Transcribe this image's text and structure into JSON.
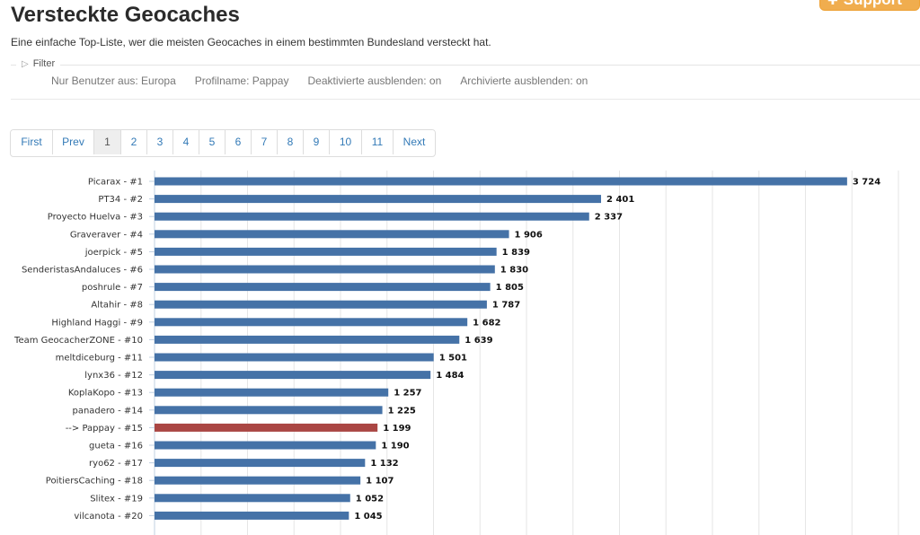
{
  "page": {
    "title": "Versteckte Geocaches",
    "subtitle": "Eine einfache Top-Liste, wer die meisten Geocaches in einem bestimmten Bundesland versteckt hat.",
    "support_label": "Support"
  },
  "filter": {
    "label": "Filter",
    "values": [
      "Nur Benutzer aus: Europa",
      "Profilname: Pappay",
      "Deaktivierte ausblenden: on",
      "Archivierte ausblenden: on"
    ]
  },
  "pagination": {
    "items": [
      "First",
      "Prev",
      "1",
      "2",
      "3",
      "4",
      "5",
      "6",
      "7",
      "8",
      "9",
      "10",
      "11",
      "Next"
    ],
    "active": "1"
  },
  "colors": {
    "bar": "#4572a7",
    "highlight": "#aa4643",
    "accent": "#f0ad4e",
    "link": "#337ab7"
  },
  "chart_data": {
    "type": "bar",
    "orientation": "horizontal",
    "categories": [
      "Picarax - #1",
      "PT34 - #2",
      "Proyecto Huelva - #3",
      "Graveraver - #4",
      "joerpick - #5",
      "SenderistasAndaluces - #6",
      "poshrule - #7",
      "Altahir - #8",
      "Highland Haggi - #9",
      "Team GeocacherZONE - #10",
      "meltdiceburg - #11",
      "lynx36 - #12",
      "KoplaKopo - #13",
      "panadero - #14",
      "--> Pappay - #15",
      "gueta - #16",
      "ryo62 - #17",
      "PoitiersCaching - #18",
      "Slitex - #19",
      "vilcanota - #20"
    ],
    "values": [
      3724,
      2401,
      2337,
      1906,
      1839,
      1830,
      1805,
      1787,
      1682,
      1639,
      1501,
      1484,
      1257,
      1225,
      1199,
      1190,
      1132,
      1107,
      1052,
      1045
    ],
    "value_labels": [
      "3 724",
      "2 401",
      "2 337",
      "1 906",
      "1 839",
      "1 830",
      "1 805",
      "1 787",
      "1 682",
      "1 639",
      "1 501",
      "1 484",
      "1 257",
      "1 225",
      "1 199",
      "1 190",
      "1 132",
      "1 107",
      "1 052",
      "1 045"
    ],
    "highlight_index": 14,
    "xlim": [
      0,
      4000
    ],
    "grid": true,
    "legend": "none"
  }
}
